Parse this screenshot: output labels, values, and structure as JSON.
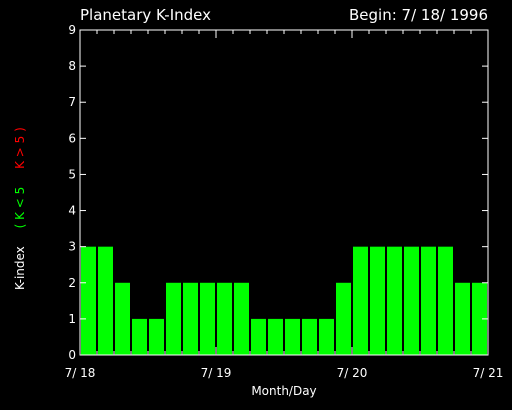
{
  "chart_data": {
    "type": "bar",
    "title": "Planetary K-Index",
    "subtitle": "Begin: 7/ 18/ 1996",
    "xlabel": "Month/Day",
    "ylabel": {
      "prefix": "K-index",
      "green_part": "( K < 5",
      "red_part": "K > 5 )"
    },
    "ylim": [
      0,
      9
    ],
    "yticks": [
      "0",
      "1",
      "2",
      "3",
      "4",
      "5",
      "6",
      "7",
      "8",
      "9"
    ],
    "xtick_labels": [
      "7/ 18",
      "7/ 19",
      "7/ 20",
      "7/ 21"
    ],
    "intervals_per_day": 8,
    "days": 3,
    "values": [
      3,
      3,
      2,
      1,
      1,
      2,
      2,
      2,
      2,
      2,
      1,
      1,
      1,
      1,
      1,
      2,
      3,
      3,
      3,
      3,
      3,
      3,
      2,
      2
    ],
    "grid": false
  },
  "colors": {
    "background": "#000000",
    "foreground": "#ffffff",
    "bar_low": "#00ff00",
    "bar_high": "#ff0000",
    "label_green": "#00ff00",
    "label_red": "#ff0000"
  }
}
